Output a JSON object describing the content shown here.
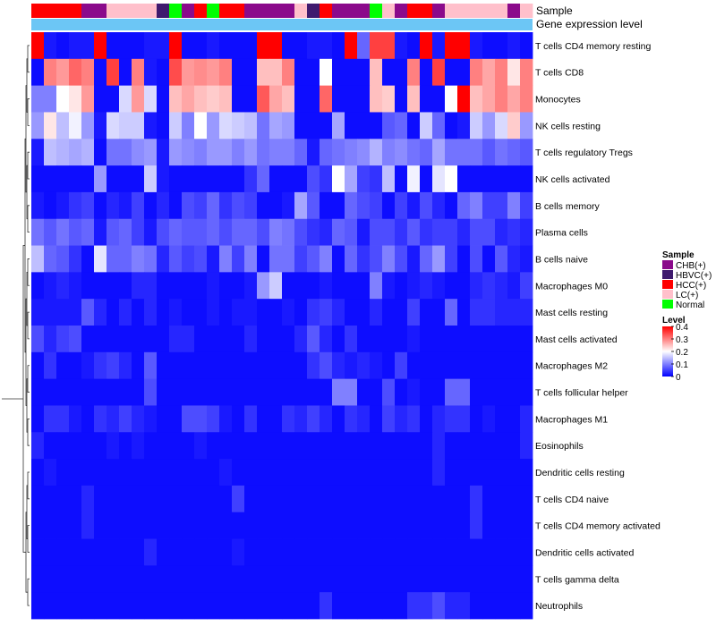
{
  "chart_data": {
    "type": "heatmap",
    "annotation_labels": {
      "sample": "Sample",
      "gene_expression": "Gene expression level"
    },
    "rows": [
      "T cells CD4 memory resting",
      "T cells CD8",
      "Monocytes",
      "NK cells resting",
      "T cells regulatory  Tregs",
      "NK cells activated",
      "B cells memory",
      "Plasma cells",
      "B cells naive",
      "Macrophages M0",
      "Mast cells resting",
      "Mast cells activated",
      "Macrophages M2",
      "T cells follicular helper",
      "Macrophages M1",
      "Eosinophils",
      "Dendritic cells resting",
      "T cells CD4 naive",
      "T cells CD4 memory activated",
      "Dendritic cells activated",
      "T cells gamma delta",
      "Neutrophils"
    ],
    "sample_groups": [
      "HCC",
      "HCC",
      "HCC",
      "HCC",
      "CHB",
      "CHB",
      "LC",
      "LC",
      "LC",
      "LC",
      "HBVC",
      "Normal",
      "CHB",
      "HCC",
      "Normal",
      "HCC",
      "HCC",
      "CHB",
      "CHB",
      "CHB",
      "CHB",
      "LC",
      "HBVC",
      "HCC",
      "CHB",
      "CHB",
      "CHB",
      "Normal",
      "LC",
      "CHB",
      "HCC",
      "HCC",
      "CHB",
      "LC",
      "LC",
      "LC",
      "LC",
      "LC",
      "CHB",
      "LC"
    ],
    "values": [
      [
        0.45,
        0.02,
        0.01,
        0.02,
        0.02,
        0.45,
        0.01,
        0.01,
        0.01,
        0.02,
        0.02,
        0.45,
        0.01,
        0.01,
        0.02,
        0.01,
        0.01,
        0.01,
        0.45,
        0.45,
        0.01,
        0.01,
        0.02,
        0.02,
        0.01,
        0.45,
        0.08,
        0.35,
        0.35,
        0.02,
        0.01,
        0.45,
        0.02,
        0.45,
        0.45,
        0.02,
        0.01,
        0.01,
        0.02,
        0.01
      ],
      [
        0.01,
        0.3,
        0.28,
        0.32,
        0.3,
        0.01,
        0.35,
        0.01,
        0.3,
        0.02,
        0.01,
        0.34,
        0.28,
        0.29,
        0.28,
        0.3,
        0.01,
        0.01,
        0.25,
        0.25,
        0.3,
        0.01,
        0.01,
        0.2,
        0.01,
        0.01,
        0.01,
        0.25,
        0.01,
        0.01,
        0.3,
        0.01,
        0.35,
        0.01,
        0.01,
        0.3,
        0.27,
        0.3,
        0.22,
        0.3
      ],
      [
        0.1,
        0.1,
        0.2,
        0.22,
        0.28,
        0.01,
        0.01,
        0.17,
        0.28,
        0.17,
        0.01,
        0.25,
        0.27,
        0.25,
        0.24,
        0.25,
        0.01,
        0.01,
        0.33,
        0.27,
        0.25,
        0.01,
        0.01,
        0.32,
        0.01,
        0.01,
        0.01,
        0.25,
        0.24,
        0.01,
        0.25,
        0.01,
        0.01,
        0.2,
        0.45,
        0.25,
        0.27,
        0.3,
        0.27,
        0.3
      ],
      [
        0.12,
        0.22,
        0.15,
        0.19,
        0.12,
        0.02,
        0.17,
        0.16,
        0.16,
        0.02,
        0.01,
        0.16,
        0.1,
        0.2,
        0.12,
        0.17,
        0.16,
        0.15,
        0.09,
        0.13,
        0.12,
        0.01,
        0.01,
        0.01,
        0.13,
        0.01,
        0.01,
        0.01,
        0.07,
        0.08,
        0.01,
        0.16,
        0.08,
        0.01,
        0.02,
        0.16,
        0.12,
        0.17,
        0.24,
        0.12
      ],
      [
        0.02,
        0.15,
        0.14,
        0.13,
        0.14,
        0.01,
        0.09,
        0.09,
        0.11,
        0.12,
        0.02,
        0.12,
        0.11,
        0.1,
        0.12,
        0.12,
        0.1,
        0.12,
        0.09,
        0.1,
        0.1,
        0.08,
        0.02,
        0.08,
        0.09,
        0.1,
        0.11,
        0.14,
        0.1,
        0.11,
        0.09,
        0.08,
        0.13,
        0.09,
        0.09,
        0.09,
        0.07,
        0.09,
        0.08,
        0.07
      ],
      [
        0.01,
        0.01,
        0.01,
        0.01,
        0.01,
        0.12,
        0.01,
        0.01,
        0.01,
        0.16,
        0.02,
        0.01,
        0.01,
        0.01,
        0.01,
        0.01,
        0.01,
        0.04,
        0.08,
        0.01,
        0.01,
        0.01,
        0.06,
        0.04,
        0.2,
        0.13,
        0.05,
        0.04,
        0.15,
        0.01,
        0.19,
        0.01,
        0.18,
        0.2,
        0.01,
        0.01,
        0.01,
        0.01,
        0.01,
        0.01
      ],
      [
        0.02,
        0.01,
        0.02,
        0.04,
        0.05,
        0.01,
        0.03,
        0.02,
        0.05,
        0.01,
        0.03,
        0.01,
        0.06,
        0.05,
        0.08,
        0.04,
        0.06,
        0.05,
        0.01,
        0.01,
        0.02,
        0.13,
        0.07,
        0.01,
        0.01,
        0.08,
        0.06,
        0.05,
        0.01,
        0.05,
        0.02,
        0.06,
        0.03,
        0.01,
        0.08,
        0.1,
        0.05,
        0.05,
        0.1,
        0.05
      ],
      [
        0.09,
        0.07,
        0.09,
        0.07,
        0.08,
        0.02,
        0.07,
        0.08,
        0.05,
        0.02,
        0.06,
        0.08,
        0.07,
        0.07,
        0.08,
        0.06,
        0.08,
        0.08,
        0.06,
        0.1,
        0.09,
        0.06,
        0.04,
        0.03,
        0.08,
        0.07,
        0.02,
        0.06,
        0.06,
        0.04,
        0.07,
        0.04,
        0.05,
        0.05,
        0.03,
        0.06,
        0.06,
        0.03,
        0.04,
        0.03
      ],
      [
        0.15,
        0.08,
        0.07,
        0.04,
        0.01,
        0.18,
        0.08,
        0.08,
        0.1,
        0.09,
        0.03,
        0.07,
        0.05,
        0.06,
        0.02,
        0.1,
        0.05,
        0.1,
        0.01,
        0.09,
        0.09,
        0.05,
        0.07,
        0.1,
        0.01,
        0.08,
        0.04,
        0.06,
        0.1,
        0.06,
        0.02,
        0.08,
        0.12,
        0.05,
        0.01,
        0.06,
        0.01,
        0.07,
        0.03,
        0.02
      ],
      [
        0.01,
        0.02,
        0.03,
        0.02,
        0.01,
        0.01,
        0.01,
        0.01,
        0.03,
        0.03,
        0.01,
        0.01,
        0.01,
        0.01,
        0.02,
        0.01,
        0.01,
        0.02,
        0.12,
        0.16,
        0.01,
        0.01,
        0.01,
        0.02,
        0.01,
        0.01,
        0.01,
        0.1,
        0.02,
        0.01,
        0.02,
        0.03,
        0.02,
        0.01,
        0.01,
        0.03,
        0.04,
        0.03,
        0.02,
        0.05
      ],
      [
        0.02,
        0.02,
        0.02,
        0.02,
        0.07,
        0.03,
        0.01,
        0.03,
        0.01,
        0.03,
        0.01,
        0.02,
        0.01,
        0.01,
        0.02,
        0.01,
        0.02,
        0.02,
        0.01,
        0.01,
        0.02,
        0.01,
        0.04,
        0.05,
        0.03,
        0.01,
        0.01,
        0.03,
        0.01,
        0.01,
        0.05,
        0.01,
        0.01,
        0.08,
        0.01,
        0.04,
        0.04,
        0.03,
        0.03,
        0.03
      ],
      [
        0.06,
        0.03,
        0.05,
        0.06,
        0.01,
        0.01,
        0.01,
        0.01,
        0.01,
        0.01,
        0.01,
        0.03,
        0.03,
        0.01,
        0.01,
        0.01,
        0.01,
        0.03,
        0.01,
        0.01,
        0.01,
        0.03,
        0.07,
        0.03,
        0.01,
        0.04,
        0.01,
        0.01,
        0.01,
        0.01,
        0.02,
        0.01,
        0.01,
        0.01,
        0.01,
        0.01,
        0.01,
        0.01,
        0.01,
        0.01
      ],
      [
        0.01,
        0.04,
        0.01,
        0.01,
        0.02,
        0.04,
        0.05,
        0.03,
        0.01,
        0.07,
        0.01,
        0.01,
        0.01,
        0.01,
        0.01,
        0.01,
        0.01,
        0.01,
        0.01,
        0.01,
        0.01,
        0.01,
        0.04,
        0.06,
        0.03,
        0.02,
        0.03,
        0.02,
        0.01,
        0.05,
        0.01,
        0.01,
        0.01,
        0.01,
        0.01,
        0.01,
        0.01,
        0.01,
        0.01,
        0.01
      ],
      [
        0.01,
        0.01,
        0.01,
        0.01,
        0.01,
        0.01,
        0.01,
        0.01,
        0.01,
        0.06,
        0.01,
        0.01,
        0.01,
        0.01,
        0.01,
        0.01,
        0.01,
        0.01,
        0.01,
        0.01,
        0.01,
        0.01,
        0.01,
        0.01,
        0.1,
        0.1,
        0.01,
        0.01,
        0.06,
        0.01,
        0.02,
        0.01,
        0.01,
        0.08,
        0.08,
        0.01,
        0.01,
        0.01,
        0.01,
        0.01
      ],
      [
        0.01,
        0.04,
        0.04,
        0.02,
        0.01,
        0.04,
        0.03,
        0.05,
        0.03,
        0.02,
        0.01,
        0.01,
        0.06,
        0.06,
        0.05,
        0.02,
        0.01,
        0.04,
        0.01,
        0.01,
        0.04,
        0.03,
        0.05,
        0.03,
        0.01,
        0.04,
        0.03,
        0.01,
        0.05,
        0.03,
        0.04,
        0.01,
        0.03,
        0.04,
        0.04,
        0.01,
        0.02,
        0.01,
        0.01,
        0.03
      ],
      [
        0.03,
        0.01,
        0.01,
        0.01,
        0.01,
        0.01,
        0.02,
        0.01,
        0.02,
        0.01,
        0.01,
        0.01,
        0.01,
        0.02,
        0.01,
        0.01,
        0.01,
        0.01,
        0.01,
        0.01,
        0.01,
        0.01,
        0.01,
        0.01,
        0.01,
        0.01,
        0.01,
        0.01,
        0.01,
        0.01,
        0.01,
        0.01,
        0.03,
        0.01,
        0.01,
        0.01,
        0.01,
        0.01,
        0.01,
        0.03
      ],
      [
        0.01,
        0.02,
        0.01,
        0.01,
        0.01,
        0.01,
        0.01,
        0.01,
        0.01,
        0.01,
        0.01,
        0.01,
        0.01,
        0.01,
        0.01,
        0.02,
        0.01,
        0.01,
        0.01,
        0.01,
        0.01,
        0.01,
        0.01,
        0.01,
        0.01,
        0.01,
        0.01,
        0.01,
        0.01,
        0.01,
        0.01,
        0.01,
        0.03,
        0.01,
        0.01,
        0.01,
        0.01,
        0.01,
        0.01,
        0.01
      ],
      [
        0.01,
        0.01,
        0.01,
        0.01,
        0.03,
        0.01,
        0.01,
        0.01,
        0.01,
        0.01,
        0.01,
        0.01,
        0.01,
        0.01,
        0.01,
        0.01,
        0.05,
        0.01,
        0.01,
        0.01,
        0.01,
        0.01,
        0.01,
        0.01,
        0.01,
        0.01,
        0.01,
        0.01,
        0.01,
        0.01,
        0.01,
        0.01,
        0.01,
        0.01,
        0.01,
        0.04,
        0.01,
        0.01,
        0.01,
        0.01
      ],
      [
        0.01,
        0.01,
        0.01,
        0.01,
        0.03,
        0.01,
        0.01,
        0.01,
        0.01,
        0.01,
        0.01,
        0.01,
        0.01,
        0.01,
        0.01,
        0.01,
        0.01,
        0.01,
        0.01,
        0.01,
        0.01,
        0.01,
        0.01,
        0.01,
        0.01,
        0.01,
        0.01,
        0.01,
        0.01,
        0.01,
        0.01,
        0.01,
        0.01,
        0.01,
        0.01,
        0.04,
        0.01,
        0.01,
        0.01,
        0.01
      ],
      [
        0.01,
        0.01,
        0.01,
        0.01,
        0.01,
        0.01,
        0.01,
        0.01,
        0.01,
        0.03,
        0.01,
        0.01,
        0.01,
        0.01,
        0.01,
        0.01,
        0.02,
        0.01,
        0.01,
        0.01,
        0.01,
        0.01,
        0.01,
        0.01,
        0.01,
        0.01,
        0.01,
        0.01,
        0.01,
        0.01,
        0.01,
        0.01,
        0.01,
        0.01,
        0.01,
        0.01,
        0.01,
        0.01,
        0.01,
        0.01
      ],
      [
        0.01,
        0.01,
        0.01,
        0.01,
        0.01,
        0.01,
        0.01,
        0.01,
        0.01,
        0.01,
        0.01,
        0.01,
        0.01,
        0.01,
        0.01,
        0.01,
        0.01,
        0.01,
        0.01,
        0.01,
        0.01,
        0.01,
        0.01,
        0.01,
        0.01,
        0.01,
        0.01,
        0.01,
        0.01,
        0.01,
        0.01,
        0.01,
        0.01,
        0.01,
        0.01,
        0.01,
        0.01,
        0.01,
        0.01,
        0.01
      ],
      [
        0.01,
        0.01,
        0.01,
        0.01,
        0.01,
        0.01,
        0.01,
        0.01,
        0.01,
        0.01,
        0.01,
        0.01,
        0.01,
        0.01,
        0.01,
        0.01,
        0.01,
        0.01,
        0.01,
        0.01,
        0.01,
        0.01,
        0.01,
        0.04,
        0.01,
        0.01,
        0.01,
        0.01,
        0.01,
        0.01,
        0.04,
        0.04,
        0.06,
        0.03,
        0.03,
        0.01,
        0.01,
        0.01,
        0.01,
        0.01
      ]
    ],
    "legend": {
      "sample_title": "Sample",
      "sample_entries": [
        {
          "key": "CHB",
          "label": "CHB(+)",
          "color": "#8b0a8b"
        },
        {
          "key": "HBVC",
          "label": "HBVC(+)",
          "color": "#3f1a6e"
        },
        {
          "key": "HCC",
          "label": "HCC(+)",
          "color": "#ff0000"
        },
        {
          "key": "LC",
          "label": "LC(+)",
          "color": "#ffc0cb"
        },
        {
          "key": "Normal",
          "label": "Normal",
          "color": "#00ff00"
        }
      ],
      "level_title": "Level",
      "level_ticks": [
        0.4,
        0.3,
        0.2,
        0.1,
        0
      ],
      "level_range": [
        0,
        0.4
      ],
      "color_low": "#0000ff",
      "color_mid": "#ffffff",
      "color_high": "#ff0000",
      "expression_bar_color": "#6cc6f5"
    }
  }
}
